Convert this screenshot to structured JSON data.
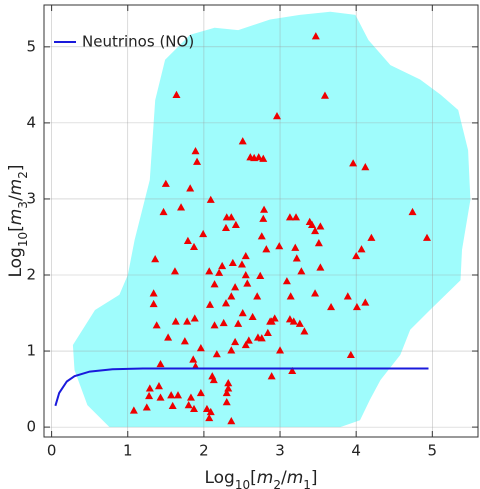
{
  "chart_data": {
    "type": "scatter",
    "xlabel_parts": [
      {
        "text": "Log",
        "style": "n"
      },
      {
        "text": "10",
        "style": "sub"
      },
      {
        "text": "[",
        "style": "n"
      },
      {
        "text": "m",
        "style": "it"
      },
      {
        "text": "2",
        "style": "sub"
      },
      {
        "text": "/",
        "style": "n"
      },
      {
        "text": "m",
        "style": "it"
      },
      {
        "text": "1",
        "style": "sub"
      },
      {
        "text": "]",
        "style": "n"
      }
    ],
    "ylabel_parts": [
      {
        "text": "Log",
        "style": "n"
      },
      {
        "text": "10",
        "style": "sub"
      },
      {
        "text": "[",
        "style": "n"
      },
      {
        "text": "m",
        "style": "it"
      },
      {
        "text": "3",
        "style": "sub"
      },
      {
        "text": "/",
        "style": "n"
      },
      {
        "text": "m",
        "style": "it"
      },
      {
        "text": "2",
        "style": "sub"
      },
      {
        "text": "]",
        "style": "n"
      }
    ],
    "xlim": [
      -0.1,
      5.6
    ],
    "ylim": [
      -0.13,
      5.55
    ],
    "xticks": [
      0,
      1,
      2,
      3,
      4,
      5
    ],
    "yticks": [
      0,
      1,
      2,
      3,
      4,
      5
    ],
    "grid": true,
    "legend": "upper left",
    "region": {
      "color": "#9ffcfc",
      "x": [
        0.76,
        0.47,
        0.3,
        0.28,
        0.57,
        0.89,
        1.0,
        1.09,
        1.29,
        1.36,
        1.49,
        1.82,
        2.14,
        2.45,
        2.87,
        3.26,
        3.66,
        3.99,
        4.16,
        4.45,
        4.84,
        5.11,
        5.34,
        5.47,
        5.5,
        5.39,
        5.37,
        4.97,
        4.71,
        4.58,
        4.32,
        4.18,
        4.05,
        3.79
      ],
      "y": [
        0,
        0.29,
        0.75,
        1.08,
        1.54,
        1.74,
        2.0,
        2.46,
        3.25,
        4.3,
        4.83,
        5.16,
        5.25,
        5.22,
        5.36,
        5.42,
        5.46,
        5.42,
        5.09,
        4.76,
        4.57,
        4.37,
        4.17,
        3.64,
        2.99,
        2.33,
        1.93,
        1.54,
        1.28,
        0.95,
        0.62,
        0.36,
        0.09,
        0
      ]
    },
    "line": {
      "name": "Neutrinos (NO)",
      "color": "#1a1adb",
      "x": [
        0.05,
        0.1,
        0.2,
        0.3,
        0.5,
        0.8,
        1.2,
        2.0,
        3.0,
        4.0,
        4.95
      ],
      "y": [
        0.28,
        0.45,
        0.6,
        0.67,
        0.73,
        0.76,
        0.77,
        0.77,
        0.77,
        0.77,
        0.77
      ]
    },
    "points": {
      "color": "#ee0000",
      "x": [
        1.64,
        3.47,
        3.59,
        2.96,
        1.89,
        1.91,
        2.51,
        2.61,
        2.66,
        2.72,
        2.78,
        3.96,
        4.12,
        1.5,
        1.82,
        1.7,
        1.47,
        2.09,
        2.3,
        2.36,
        2.29,
        2.42,
        2.79,
        2.78,
        3.13,
        3.21,
        3.39,
        3.42,
        3.53,
        3.46,
        3.51,
        4.74,
        4.93,
        4.2,
        4.07,
        4.0,
        1.79,
        1.87,
        1.62,
        1.36,
        1.99,
        2.07,
        2.24,
        2.2,
        2.14,
        2.38,
        2.55,
        2.5,
        2.55,
        2.41,
        2.36,
        2.57,
        2.76,
        2.82,
        2.74,
        2.7,
        2.99,
        3.2,
        3.22,
        3.28,
        3.53,
        3.09,
        3.14,
        3.46,
        3.89,
        3.67,
        4.01,
        4.12,
        1.34,
        1.34,
        1.38,
        1.63,
        1.78,
        1.88,
        2.14,
        2.26,
        2.45,
        2.51,
        2.08,
        2.29,
        2.64,
        2.87,
        2.89,
        2.93,
        3.13,
        3.18,
        3.26,
        3.32,
        2.84,
        2.71,
        2.76,
        2.59,
        2.55,
        2.36,
        2.41,
        1.96,
        2.17,
        1.53,
        1.75,
        1.43,
        1.89,
        1.86,
        3.0,
        3.16,
        3.93,
        2.89,
        2.11,
        2.13,
        1.29,
        1.41,
        1.43,
        1.57,
        1.66,
        1.28,
        2.32,
        2.32,
        2.3,
        2.3,
        1.96,
        1.8,
        1.87,
        1.59,
        1.25,
        1.08,
        2.04,
        2.09,
        2.07,
        2.36,
        1.83
      ],
      "y": [
        4.37,
        5.14,
        4.36,
        4.09,
        3.63,
        3.49,
        3.76,
        3.55,
        3.54,
        3.55,
        3.53,
        3.47,
        3.42,
        3.2,
        3.14,
        2.89,
        2.83,
        2.99,
        2.76,
        2.76,
        2.62,
        2.66,
        2.86,
        2.74,
        2.76,
        2.76,
        2.7,
        2.66,
        2.64,
        2.58,
        2.42,
        2.83,
        2.49,
        2.49,
        2.34,
        2.25,
        2.45,
        2.37,
        2.05,
        2.21,
        2.54,
        2.05,
        2.12,
        2.03,
        1.88,
        2.16,
        2.25,
        2.14,
        2.0,
        1.84,
        1.72,
        1.89,
        2.51,
        2.34,
        1.99,
        1.72,
        2.38,
        2.36,
        2.22,
        2.05,
        2.1,
        1.92,
        1.72,
        1.76,
        1.72,
        1.58,
        1.58,
        1.64,
        1.76,
        1.62,
        1.34,
        1.39,
        1.39,
        1.43,
        1.34,
        1.37,
        1.36,
        1.5,
        1.61,
        1.63,
        1.45,
        1.39,
        1.39,
        1.43,
        1.42,
        1.39,
        1.36,
        1.26,
        1.24,
        1.18,
        1.17,
        1.14,
        1.08,
        1.01,
        1.12,
        1.04,
        0.96,
        1.18,
        1.13,
        0.83,
        0.8,
        0.89,
        1.01,
        0.74,
        0.95,
        0.67,
        0.67,
        0.62,
        0.51,
        0.54,
        0.39,
        0.42,
        0.42,
        0.41,
        0.58,
        0.51,
        0.45,
        0.33,
        0.45,
        0.29,
        0.24,
        0.28,
        0.26,
        0.22,
        0.24,
        0.2,
        0.12,
        0.08,
        0.39
      ]
    }
  }
}
